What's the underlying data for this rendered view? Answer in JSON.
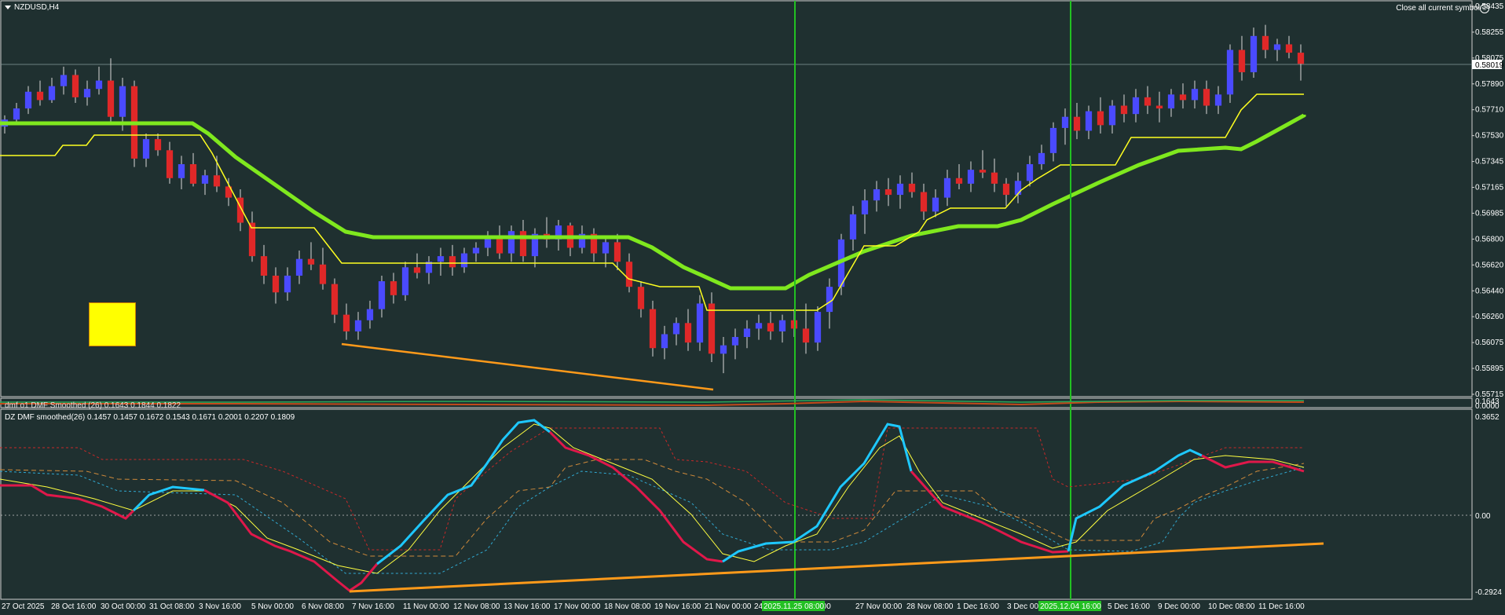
{
  "symbol": {
    "title": "NZDUSD,H4"
  },
  "toolbar": {
    "close_all_label": "Close all current symbol"
  },
  "colors": {
    "background": "#1f3030",
    "bull": "#4a4aff",
    "bear": "#e02828",
    "ma_green": "#7fe81e",
    "ma_yellow": "#ffff20",
    "trend_orange": "#ff9a1a",
    "vline_green": "#22c022",
    "dmf_up": "#1ec8ff",
    "dmf_down": "#e0184a"
  },
  "icons": {
    "dropdown": "caret-down-icon",
    "close": "smiley-close-icon"
  },
  "price_panel": {
    "current_price": "0.58019",
    "y_ticks": [
      "0.58435",
      "0.58255",
      "0.58075",
      "0.57890",
      "0.57710",
      "0.57530",
      "0.57345",
      "0.57165",
      "0.56985",
      "0.56800",
      "0.56620",
      "0.56440",
      "0.56260",
      "0.56075",
      "0.55895",
      "0.55715"
    ]
  },
  "indicator1": {
    "label": "dmf o1 DMF Smoothed (26) 0.1643 0.1844 0.1822",
    "y_ticks": [
      "0.1643",
      "0.0000"
    ]
  },
  "indicator2": {
    "label": "DZ DMF smoothed(26) 0.1457 0.1457 0.1672 0.1543 0.1671 0.2001 0.2207 0.1809",
    "y_ticks": [
      "0.3652",
      "0.00",
      "-0.2924"
    ]
  },
  "x_axis": {
    "labels": [
      "27 Oct 2025",
      "28 Oct 16:00",
      "30 Oct 00:00",
      "31 Oct 08:00",
      "3 Nov 16:00",
      "5 Nov 00:00",
      "6 Nov 08:00",
      "7 Nov 16:00",
      "11 Nov 00:00",
      "12 Nov 08:00",
      "13 Nov 16:00",
      "17 Nov 00:00",
      "18 Nov 08:00",
      "19 Nov 16:00",
      "21 Nov 00:00",
      "24",
      "v 16:00",
      "27 Nov 00:00",
      "28 Nov 08:00",
      "1 Dec 16:00",
      "3 Dec 00:",
      "5 Dec 16:00",
      "9 Dec 00:00",
      "10 Dec 08:00",
      "11 Dec 16:00"
    ],
    "highlight_labels": [
      "2025.11.25 08:00",
      "2025.12.04 16:00"
    ]
  },
  "chart_data": {
    "type": "candlestick",
    "symbol": "NZDUSD",
    "timeframe": "H4",
    "ylim": [
      0.5566,
      0.5845
    ],
    "candles_approx": [
      [
        0.5757,
        0.5765,
        0.5752,
        0.5762
      ],
      [
        0.5762,
        0.5774,
        0.5758,
        0.577
      ],
      [
        0.577,
        0.5786,
        0.5766,
        0.5782
      ],
      [
        0.5782,
        0.579,
        0.5772,
        0.5776
      ],
      [
        0.5776,
        0.5792,
        0.5774,
        0.5786
      ],
      [
        0.5786,
        0.58,
        0.578,
        0.5794
      ],
      [
        0.5794,
        0.5798,
        0.5774,
        0.5778
      ],
      [
        0.5778,
        0.579,
        0.5772,
        0.5784
      ],
      [
        0.5784,
        0.58,
        0.578,
        0.579
      ],
      [
        0.579,
        0.5806,
        0.576,
        0.5764
      ],
      [
        0.5764,
        0.5792,
        0.5754,
        0.5786
      ],
      [
        0.5786,
        0.579,
        0.5728,
        0.5734
      ],
      [
        0.5734,
        0.5752,
        0.5728,
        0.5748
      ],
      [
        0.5748,
        0.5752,
        0.5736,
        0.574
      ],
      [
        0.574,
        0.5746,
        0.5716,
        0.572
      ],
      [
        0.572,
        0.5736,
        0.5712,
        0.573
      ],
      [
        0.573,
        0.5738,
        0.5714,
        0.5716
      ],
      [
        0.5716,
        0.5726,
        0.5708,
        0.5722
      ],
      [
        0.5722,
        0.5736,
        0.571,
        0.5714
      ],
      [
        0.5714,
        0.572,
        0.57,
        0.5706
      ],
      [
        0.5706,
        0.5712,
        0.5682,
        0.5688
      ],
      [
        0.5688,
        0.5696,
        0.566,
        0.5664
      ],
      [
        0.5664,
        0.5672,
        0.5644,
        0.565
      ],
      [
        0.565,
        0.5656,
        0.563,
        0.5638
      ],
      [
        0.5638,
        0.5656,
        0.5632,
        0.565
      ],
      [
        0.565,
        0.5668,
        0.5644,
        0.5662
      ],
      [
        0.5662,
        0.5674,
        0.5654,
        0.5658
      ],
      [
        0.5658,
        0.567,
        0.564,
        0.5644
      ],
      [
        0.5644,
        0.5648,
        0.5616,
        0.5622
      ],
      [
        0.5622,
        0.563,
        0.5604,
        0.561
      ],
      [
        0.561,
        0.5624,
        0.5604,
        0.5618
      ],
      [
        0.5618,
        0.5632,
        0.5612,
        0.5626
      ],
      [
        0.5626,
        0.565,
        0.562,
        0.5646
      ],
      [
        0.5646,
        0.5652,
        0.563,
        0.5636
      ],
      [
        0.5636,
        0.566,
        0.5632,
        0.5656
      ],
      [
        0.5656,
        0.5666,
        0.5648,
        0.5652
      ],
      [
        0.5652,
        0.5664,
        0.5644,
        0.566
      ],
      [
        0.566,
        0.567,
        0.565,
        0.5664
      ],
      [
        0.5664,
        0.5672,
        0.565,
        0.5656
      ],
      [
        0.5656,
        0.567,
        0.5652,
        0.5666
      ],
      [
        0.5666,
        0.5674,
        0.566,
        0.567
      ],
      [
        0.567,
        0.5682,
        0.5664,
        0.5678
      ],
      [
        0.5678,
        0.5686,
        0.5662,
        0.5666
      ],
      [
        0.5666,
        0.5686,
        0.566,
        0.5682
      ],
      [
        0.5682,
        0.569,
        0.566,
        0.5664
      ],
      [
        0.5664,
        0.5684,
        0.5656,
        0.568
      ],
      [
        0.568,
        0.5692,
        0.567,
        0.5676
      ],
      [
        0.5676,
        0.569,
        0.5668,
        0.5686
      ],
      [
        0.5686,
        0.5688,
        0.5664,
        0.567
      ],
      [
        0.567,
        0.5686,
        0.5666,
        0.568
      ],
      [
        0.568,
        0.5684,
        0.566,
        0.5666
      ],
      [
        0.5666,
        0.5678,
        0.5656,
        0.5674
      ],
      [
        0.5674,
        0.568,
        0.5654,
        0.566
      ],
      [
        0.566,
        0.5666,
        0.5638,
        0.5642
      ],
      [
        0.5642,
        0.5646,
        0.562,
        0.5626
      ],
      [
        0.5626,
        0.5632,
        0.5592,
        0.5598
      ],
      [
        0.5598,
        0.5614,
        0.559,
        0.5608
      ],
      [
        0.5608,
        0.562,
        0.56,
        0.5616
      ],
      [
        0.5616,
        0.5626,
        0.5596,
        0.5602
      ],
      [
        0.5602,
        0.5636,
        0.5596,
        0.563
      ],
      [
        0.563,
        0.5638,
        0.5588,
        0.5594
      ],
      [
        0.5594,
        0.5606,
        0.558,
        0.56
      ],
      [
        0.56,
        0.5612,
        0.559,
        0.5606
      ],
      [
        0.5606,
        0.5618,
        0.5598,
        0.5612
      ],
      [
        0.5612,
        0.5622,
        0.5604,
        0.5616
      ],
      [
        0.5616,
        0.5624,
        0.5604,
        0.561
      ],
      [
        0.561,
        0.5622,
        0.5602,
        0.5618
      ],
      [
        0.5618,
        0.5626,
        0.5606,
        0.5612
      ],
      [
        0.5612,
        0.563,
        0.5594,
        0.5602
      ],
      [
        0.5602,
        0.5628,
        0.5596,
        0.5624
      ],
      [
        0.5624,
        0.5648,
        0.5612,
        0.5642
      ],
      [
        0.5642,
        0.568,
        0.5636,
        0.5676
      ],
      [
        0.5676,
        0.57,
        0.5668,
        0.5694
      ],
      [
        0.5694,
        0.5712,
        0.568,
        0.5704
      ],
      [
        0.5704,
        0.5718,
        0.5696,
        0.5712
      ],
      [
        0.5712,
        0.572,
        0.57,
        0.5708
      ],
      [
        0.5708,
        0.5722,
        0.5698,
        0.5716
      ],
      [
        0.5716,
        0.5724,
        0.5706,
        0.571
      ],
      [
        0.571,
        0.5716,
        0.569,
        0.5696
      ],
      [
        0.5696,
        0.5712,
        0.5692,
        0.5706
      ],
      [
        0.5706,
        0.5726,
        0.57,
        0.572
      ],
      [
        0.572,
        0.573,
        0.5712,
        0.5716
      ],
      [
        0.5716,
        0.5732,
        0.571,
        0.5726
      ],
      [
        0.5726,
        0.574,
        0.572,
        0.5724
      ],
      [
        0.5724,
        0.5734,
        0.571,
        0.5716
      ],
      [
        0.5716,
        0.572,
        0.57,
        0.5708
      ],
      [
        0.5708,
        0.5724,
        0.5702,
        0.5718
      ],
      [
        0.5718,
        0.5736,
        0.5714,
        0.573
      ],
      [
        0.573,
        0.5744,
        0.5726,
        0.5738
      ],
      [
        0.5738,
        0.576,
        0.5732,
        0.5756
      ],
      [
        0.5756,
        0.577,
        0.5744,
        0.5764
      ],
      [
        0.5764,
        0.5774,
        0.5748,
        0.5754
      ],
      [
        0.5754,
        0.5772,
        0.5748,
        0.5768
      ],
      [
        0.5768,
        0.5778,
        0.5752,
        0.5758
      ],
      [
        0.5758,
        0.5776,
        0.5752,
        0.5772
      ],
      [
        0.5772,
        0.578,
        0.576,
        0.5766
      ],
      [
        0.5766,
        0.5784,
        0.576,
        0.5778
      ],
      [
        0.5778,
        0.5786,
        0.5766,
        0.5772
      ],
      [
        0.5772,
        0.5782,
        0.576,
        0.577
      ],
      [
        0.577,
        0.5784,
        0.5764,
        0.578
      ],
      [
        0.578,
        0.5788,
        0.577,
        0.5776
      ],
      [
        0.5776,
        0.579,
        0.577,
        0.5784
      ],
      [
        0.5784,
        0.579,
        0.5766,
        0.5772
      ],
      [
        0.5772,
        0.5786,
        0.5766,
        0.578
      ],
      [
        0.578,
        0.5816,
        0.5774,
        0.5812
      ],
      [
        0.5812,
        0.5822,
        0.579,
        0.5796
      ],
      [
        0.5796,
        0.5828,
        0.5792,
        0.5822
      ],
      [
        0.5822,
        0.583,
        0.5806,
        0.5812
      ],
      [
        0.5812,
        0.582,
        0.5804,
        0.5816
      ],
      [
        0.5816,
        0.5822,
        0.5806,
        0.581
      ],
      [
        0.581,
        0.5816,
        0.579,
        0.5802
      ]
    ]
  }
}
